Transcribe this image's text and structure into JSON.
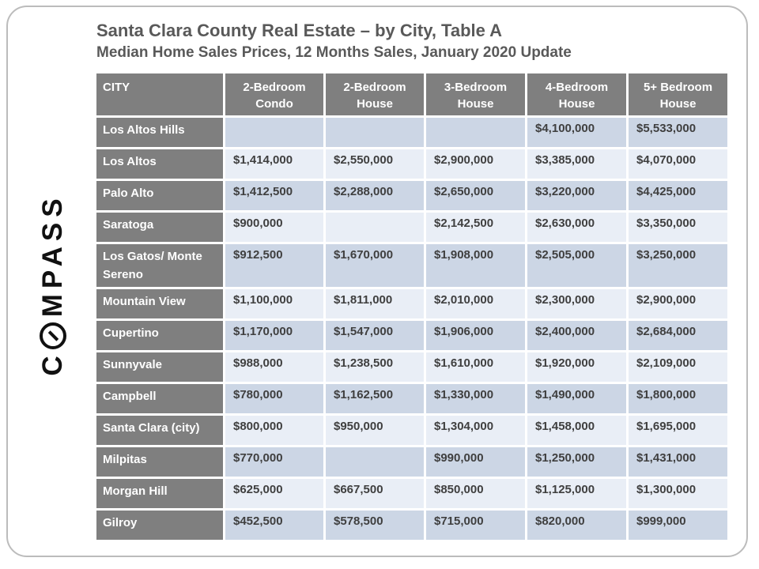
{
  "slide": {
    "title": "Santa Clara County Real Estate – by City, Table A",
    "subtitle": "Median Home Sales Prices, 12 Months Sales, January 2020 Update"
  },
  "logo": {
    "brand": "COMPASS",
    "prefix": "C",
    "suffix": "MPASS",
    "o_symbol": "circle-with-diagonal-needle"
  },
  "table": {
    "columns": [
      "CITY",
      "2-Bedroom\nCondo",
      "2-Bedroom\nHouse",
      "3-Bedroom\nHouse",
      "4-Bedroom\nHouse",
      "5+ Bedroom\nHouse"
    ],
    "rows": [
      {
        "city": "Los Altos Hills",
        "values": [
          "",
          "",
          "",
          "$4,100,000",
          "$5,533,000"
        ]
      },
      {
        "city": "Los Altos",
        "values": [
          "$1,414,000",
          "$2,550,000",
          "$2,900,000",
          "$3,385,000",
          "$4,070,000"
        ]
      },
      {
        "city": "Palo Alto",
        "values": [
          "$1,412,500",
          "$2,288,000",
          "$2,650,000",
          "$3,220,000",
          "$4,425,000"
        ]
      },
      {
        "city": "Saratoga",
        "values": [
          "$900,000",
          "",
          "$2,142,500",
          "$2,630,000",
          "$3,350,000"
        ]
      },
      {
        "city": "Los Gatos/ Monte Sereno",
        "values": [
          "$912,500",
          "$1,670,000",
          "$1,908,000",
          "$2,505,000",
          "$3,250,000"
        ]
      },
      {
        "city": "Mountain View",
        "values": [
          "$1,100,000",
          "$1,811,000",
          "$2,010,000",
          "$2,300,000",
          "$2,900,000"
        ]
      },
      {
        "city": "Cupertino",
        "values": [
          "$1,170,000",
          "$1,547,000",
          "$1,906,000",
          "$2,400,000",
          "$2,684,000"
        ]
      },
      {
        "city": "Sunnyvale",
        "values": [
          "$988,000",
          "$1,238,500",
          "$1,610,000",
          "$1,920,000",
          "$2,109,000"
        ]
      },
      {
        "city": "Campbell",
        "values": [
          "$780,000",
          "$1,162,500",
          "$1,330,000",
          "$1,490,000",
          "$1,800,000"
        ]
      },
      {
        "city": "Santa Clara (city)",
        "values": [
          "$800,000",
          "$950,000",
          "$1,304,000",
          "$1,458,000",
          "$1,695,000"
        ]
      },
      {
        "city": "Milpitas",
        "values": [
          "$770,000",
          "",
          "$990,000",
          "$1,250,000",
          "$1,431,000"
        ]
      },
      {
        "city": "Morgan Hill",
        "values": [
          "$625,000",
          "$667,500",
          "$850,000",
          "$1,125,000",
          "$1,300,000"
        ]
      },
      {
        "city": "Gilroy",
        "values": [
          "$452,500",
          "$578,500",
          "$715,000",
          "$820,000",
          "$999,000"
        ]
      }
    ]
  },
  "colors": {
    "header_bg": "#7f7f7f",
    "row_odd_bg": "#ccd6e5",
    "row_even_bg": "#e9eef6",
    "data_text": "#3f3f3f",
    "title_text": "#595959",
    "frame_border": "#bcbcbc"
  }
}
